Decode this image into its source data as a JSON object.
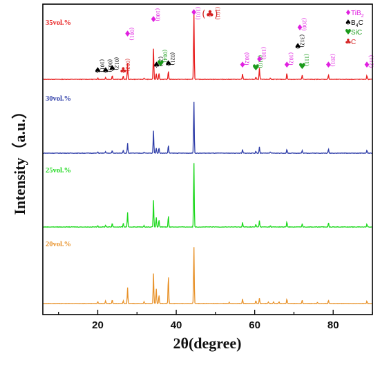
{
  "chart_data": {
    "type": "line",
    "xlabel": "2θ(degree)",
    "ylabel": "Intensity（a.u.）",
    "xlim": [
      6,
      90
    ],
    "xticks": [
      20,
      40,
      60,
      80
    ],
    "yticks": "none",
    "layout": "stacked",
    "grid": false,
    "legend_placement": "top-right",
    "legend": [
      {
        "symbol": "♦",
        "text": "TiB",
        "sub": "2",
        "color": "#e020e0"
      },
      {
        "symbol": "♠",
        "text": "B",
        "sub": "4",
        "text2": "C",
        "color": "#000000"
      },
      {
        "symbol": "♥",
        "text": "SiC",
        "color": "#1a9a1a"
      },
      {
        "symbol": "♣",
        "text": "C",
        "color": "#d42020"
      }
    ],
    "series": [
      {
        "name": "35vol.%",
        "color": "#e81c1c",
        "peaks": [
          [
            20.0,
            0.02
          ],
          [
            22.0,
            0.03
          ],
          [
            23.7,
            0.06
          ],
          [
            26.5,
            0.05
          ],
          [
            27.6,
            0.23
          ],
          [
            31.8,
            0.02
          ],
          [
            34.2,
            0.45
          ],
          [
            34.9,
            0.09
          ],
          [
            35.6,
            0.1
          ],
          [
            38.0,
            0.13
          ],
          [
            44.5,
            1.0
          ],
          [
            56.9,
            0.08
          ],
          [
            60.3,
            0.03
          ],
          [
            61.2,
            0.16
          ],
          [
            64.0,
            0.02
          ],
          [
            68.2,
            0.09
          ],
          [
            72.1,
            0.06
          ],
          [
            78.8,
            0.07
          ],
          [
            88.6,
            0.06
          ]
        ]
      },
      {
        "name": "30vol.%",
        "color": "#2e3da8",
        "peaks": [
          [
            20.0,
            0.02
          ],
          [
            22.0,
            0.03
          ],
          [
            23.7,
            0.05
          ],
          [
            26.5,
            0.06
          ],
          [
            27.6,
            0.19
          ],
          [
            31.8,
            0.02
          ],
          [
            34.2,
            0.43
          ],
          [
            34.9,
            0.1
          ],
          [
            35.6,
            0.11
          ],
          [
            38.0,
            0.16
          ],
          [
            44.5,
            1.0
          ],
          [
            56.9,
            0.07
          ],
          [
            60.3,
            0.04
          ],
          [
            61.2,
            0.12
          ],
          [
            64.0,
            0.02
          ],
          [
            68.2,
            0.07
          ],
          [
            72.1,
            0.05
          ],
          [
            78.8,
            0.08
          ],
          [
            88.6,
            0.06
          ]
        ]
      },
      {
        "name": "25vol.%",
        "color": "#1cd81c",
        "peaks": [
          [
            20.0,
            0.02
          ],
          [
            22.0,
            0.03
          ],
          [
            23.7,
            0.06
          ],
          [
            26.5,
            0.06
          ],
          [
            27.6,
            0.22
          ],
          [
            31.8,
            0.02
          ],
          [
            34.2,
            0.41
          ],
          [
            34.9,
            0.15
          ],
          [
            35.6,
            0.11
          ],
          [
            38.0,
            0.18
          ],
          [
            44.5,
            1.0
          ],
          [
            56.9,
            0.07
          ],
          [
            60.3,
            0.04
          ],
          [
            61.2,
            0.1
          ],
          [
            64.0,
            0.02
          ],
          [
            68.2,
            0.08
          ],
          [
            72.1,
            0.05
          ],
          [
            78.8,
            0.07
          ],
          [
            88.6,
            0.05
          ]
        ]
      },
      {
        "name": "20vol.%",
        "color": "#e8922a",
        "peaks": [
          [
            20.0,
            0.03
          ],
          [
            22.0,
            0.05
          ],
          [
            23.7,
            0.07
          ],
          [
            26.5,
            0.05
          ],
          [
            27.6,
            0.28
          ],
          [
            31.8,
            0.03
          ],
          [
            34.2,
            0.52
          ],
          [
            34.9,
            0.26
          ],
          [
            35.6,
            0.15
          ],
          [
            38.0,
            0.5
          ],
          [
            44.5,
            1.0
          ],
          [
            53.5,
            0.02
          ],
          [
            56.9,
            0.08
          ],
          [
            60.3,
            0.05
          ],
          [
            61.2,
            0.09
          ],
          [
            63.5,
            0.03
          ],
          [
            64.8,
            0.03
          ],
          [
            66.2,
            0.03
          ],
          [
            68.2,
            0.08
          ],
          [
            72.1,
            0.06
          ],
          [
            76.0,
            0.02
          ],
          [
            78.8,
            0.06
          ],
          [
            88.6,
            0.04
          ]
        ]
      }
    ],
    "annotations": [
      {
        "x": 20.0,
        "label": "(101)",
        "symbol": "♠",
        "color": "#000000"
      },
      {
        "x": 22.0,
        "label": "(003)",
        "symbol": "♠",
        "color": "#000000"
      },
      {
        "x": 23.7,
        "label": "(012)",
        "symbol": "♠",
        "color": "#000000"
      },
      {
        "x": 26.5,
        "label": "(002)",
        "symbol": "♣",
        "color": "#d42020"
      },
      {
        "x": 27.6,
        "label": "(001)",
        "symbol": "♦",
        "color": "#e020e0"
      },
      {
        "x": 34.2,
        "label": "(100)",
        "symbol": "♦",
        "color": "#e020e0"
      },
      {
        "x": 35.0,
        "label": "(21)",
        "symbol": "♠",
        "color": "#000000"
      },
      {
        "x": 36.0,
        "label": "(004)",
        "symbol": "♥",
        "color": "#1a9a1a"
      },
      {
        "x": 38.0,
        "label": "(021)",
        "symbol": "♠",
        "color": "#000000"
      },
      {
        "x": 44.5,
        "label": "(101)",
        "symbol": "♦",
        "color": "#e020e0"
      },
      {
        "x": 56.9,
        "label": "(002)",
        "symbol": "♦",
        "color": "#e020e0"
      },
      {
        "x": 60.3,
        "label": "(010)",
        "symbol": "♥",
        "color": "#1a9a1a"
      },
      {
        "x": 61.2,
        "label": "(110)",
        "symbol": "♦",
        "color": "#e020e0"
      },
      {
        "x": 68.2,
        "label": "(102)",
        "symbol": "♦",
        "color": "#e020e0"
      },
      {
        "x": 71.5,
        "label": "(200)",
        "symbol": "♦",
        "color": "#e020e0"
      },
      {
        "x": 72.1,
        "label": "(111)",
        "symbol": "♥",
        "color": "#1a9a1a"
      },
      {
        "x": 71.0,
        "label": "(312)",
        "symbol": "♠",
        "color": "#000000"
      },
      {
        "x": 78.8,
        "label": "(201)",
        "symbol": "♦",
        "color": "#e020e0"
      },
      {
        "x": 88.6,
        "label": "(112)",
        "symbol": "♦",
        "color": "#e020e0"
      }
    ],
    "extra_marks": [
      {
        "x": 48.6,
        "text": "(♣)",
        "color": "#d42020"
      },
      {
        "x": 50.2,
        "text": "(101)",
        "color": "#d42020"
      }
    ]
  }
}
